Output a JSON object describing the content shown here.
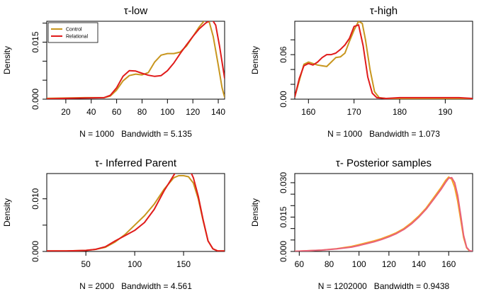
{
  "colors": {
    "gold": "#C8961E",
    "red": "#E01B1B",
    "orange": "#F5A623",
    "pink": "#E8607A"
  },
  "chart_data": [
    {
      "type": "line",
      "title": "τ-low",
      "ylabel": "Density",
      "xlabel": "N = 1000   Bandwidth = 5.135",
      "xlim": [
        5,
        145
      ],
      "ylim": [
        0,
        0.0205
      ],
      "xticks": [
        20,
        40,
        60,
        80,
        100,
        120,
        140
      ],
      "yticks": [
        0.0,
        0.005,
        0.01,
        0.015,
        0.02
      ],
      "ytick_labels": [
        "0.000",
        "",
        "",
        "0.015",
        ""
      ],
      "legend": {
        "position": "top-left",
        "entries": [
          "Control",
          "Relational"
        ]
      },
      "series": [
        {
          "name": "Control",
          "color": "gold",
          "x": [
            5,
            20,
            35,
            50,
            55,
            60,
            65,
            70,
            75,
            80,
            85,
            90,
            95,
            100,
            105,
            110,
            115,
            120,
            125,
            130,
            133,
            136,
            140,
            143,
            145
          ],
          "y": [
            0.0002,
            0.0003,
            0.0004,
            0.0004,
            0.0008,
            0.0024,
            0.0048,
            0.0062,
            0.0066,
            0.0064,
            0.007,
            0.0098,
            0.0116,
            0.012,
            0.012,
            0.0124,
            0.014,
            0.0165,
            0.019,
            0.021,
            0.0202,
            0.0165,
            0.009,
            0.003,
            0.0005
          ]
        },
        {
          "name": "Relational",
          "color": "red",
          "x": [
            5,
            20,
            35,
            50,
            55,
            60,
            65,
            70,
            75,
            80,
            85,
            90,
            95,
            100,
            105,
            110,
            115,
            120,
            125,
            130,
            135,
            138,
            141,
            145
          ],
          "y": [
            0.0001,
            0.0002,
            0.0003,
            0.0004,
            0.001,
            0.003,
            0.006,
            0.0075,
            0.0074,
            0.0068,
            0.0063,
            0.006,
            0.0062,
            0.0075,
            0.0095,
            0.012,
            0.0143,
            0.0165,
            0.0185,
            0.02,
            0.021,
            0.0195,
            0.014,
            0.0055
          ]
        }
      ]
    },
    {
      "type": "line",
      "title": "τ-high",
      "ylabel": "Density",
      "xlabel": "N = 1000   Bandwidth = 1.073",
      "xlim": [
        157,
        196
      ],
      "ylim": [
        0,
        0.105
      ],
      "xticks": [
        160,
        170,
        180,
        190
      ],
      "yticks": [
        0.0,
        0.02,
        0.04,
        0.06,
        0.08
      ],
      "ytick_labels": [
        "0.00",
        "",
        "",
        "0.06",
        ""
      ],
      "series": [
        {
          "name": "Control",
          "color": "gold",
          "x": [
            157,
            158,
            159,
            160,
            161,
            162,
            163,
            164,
            165,
            166,
            167,
            168,
            169,
            170,
            171,
            171.8,
            172.5,
            173.5,
            174.5,
            175.5,
            177,
            180,
            185,
            190,
            193,
            196
          ],
          "y": [
            0.003,
            0.025,
            0.047,
            0.05,
            0.048,
            0.046,
            0.045,
            0.044,
            0.05,
            0.056,
            0.057,
            0.062,
            0.078,
            0.093,
            0.105,
            0.102,
            0.08,
            0.04,
            0.01,
            0.002,
            0.001,
            0.001,
            0.001,
            0.001,
            0.001,
            0.001
          ]
        },
        {
          "name": "Relational",
          "color": "red",
          "x": [
            157,
            158,
            159,
            160,
            161,
            162,
            163,
            164,
            165,
            166,
            167,
            168,
            169,
            170,
            171,
            172,
            173,
            174,
            175,
            177,
            180,
            185,
            190,
            193,
            196
          ],
          "y": [
            0.003,
            0.028,
            0.045,
            0.048,
            0.046,
            0.05,
            0.056,
            0.06,
            0.06,
            0.062,
            0.067,
            0.073,
            0.082,
            0.098,
            0.1,
            0.072,
            0.03,
            0.008,
            0.002,
            0.001,
            0.002,
            0.002,
            0.002,
            0.002,
            0.001
          ]
        }
      ]
    },
    {
      "type": "line",
      "title": "τ- Inferred Parent",
      "ylabel": "Density",
      "xlabel": "N = 2000   Bandwidth = 4.561",
      "xlim": [
        10,
        192
      ],
      "ylim": [
        0,
        0.0148
      ],
      "xticks": [
        50,
        100,
        150
      ],
      "yticks": [
        0.0,
        0.005,
        0.01
      ],
      "ytick_labels": [
        "0.000",
        "",
        "0.010"
      ],
      "series": [
        {
          "name": "Control",
          "color": "gold",
          "x": [
            10,
            30,
            50,
            60,
            70,
            80,
            90,
            100,
            110,
            120,
            130,
            140,
            145,
            150,
            155,
            160,
            165,
            170,
            175,
            180,
            185,
            192
          ],
          "y": [
            0.0001,
            0.0001,
            0.0002,
            0.0004,
            0.0008,
            0.0018,
            0.0032,
            0.005,
            0.0068,
            0.009,
            0.0118,
            0.014,
            0.0144,
            0.0144,
            0.0142,
            0.013,
            0.01,
            0.0058,
            0.002,
            0.0005,
            0.0001,
            0.0001
          ]
        },
        {
          "name": "Relational",
          "color": "red",
          "x": [
            10,
            30,
            50,
            60,
            70,
            80,
            90,
            100,
            110,
            120,
            130,
            140,
            145,
            150,
            155,
            160,
            165,
            170,
            175,
            180,
            185,
            192
          ],
          "y": [
            0.0001,
            0.0001,
            0.0002,
            0.0004,
            0.0009,
            0.002,
            0.003,
            0.004,
            0.0055,
            0.008,
            0.0115,
            0.0145,
            0.016,
            0.0165,
            0.016,
            0.014,
            0.0105,
            0.006,
            0.002,
            0.0005,
            0.0001,
            0.0001
          ]
        }
      ]
    },
    {
      "type": "line",
      "title": "τ- Posterior samples",
      "ylabel": "Density",
      "xlabel": "N = 1202000   Bandwidth = 0.9438",
      "xlim": [
        57,
        176
      ],
      "ylim": [
        0,
        0.034
      ],
      "xticks": [
        60,
        80,
        100,
        120,
        140,
        160
      ],
      "yticks": [
        0.0,
        0.005,
        0.01,
        0.015,
        0.02,
        0.025,
        0.03
      ],
      "ytick_labels": [
        "0.000",
        "",
        "",
        "0.015",
        "",
        "",
        "0.030"
      ],
      "series": [
        {
          "name": "Control",
          "color": "orange",
          "x": [
            57,
            65,
            75,
            85,
            95,
            100,
            105,
            110,
            115,
            120,
            125,
            130,
            135,
            140,
            145,
            150,
            155,
            158,
            160,
            162,
            164,
            166,
            168,
            170,
            172,
            174,
            176
          ],
          "y": [
            0.0001,
            0.0003,
            0.0006,
            0.0012,
            0.0022,
            0.003,
            0.0038,
            0.0046,
            0.0056,
            0.0068,
            0.0082,
            0.01,
            0.0125,
            0.0155,
            0.019,
            0.0235,
            0.028,
            0.031,
            0.0325,
            0.0315,
            0.028,
            0.022,
            0.014,
            0.006,
            0.0015,
            0.0002,
            0.0001
          ]
        },
        {
          "name": "Relational",
          "color": "pink",
          "x": [
            57,
            65,
            75,
            85,
            95,
            100,
            105,
            110,
            115,
            120,
            125,
            130,
            135,
            140,
            145,
            150,
            155,
            158,
            160,
            162,
            164,
            166,
            168,
            170,
            172,
            174,
            176
          ],
          "y": [
            0.0001,
            0.0003,
            0.0006,
            0.0011,
            0.0019,
            0.0026,
            0.0034,
            0.0042,
            0.0052,
            0.0064,
            0.0078,
            0.0096,
            0.012,
            0.015,
            0.0185,
            0.0228,
            0.0272,
            0.0302,
            0.032,
            0.0322,
            0.03,
            0.0245,
            0.016,
            0.007,
            0.0018,
            0.0003,
            0.0001
          ]
        }
      ]
    }
  ]
}
